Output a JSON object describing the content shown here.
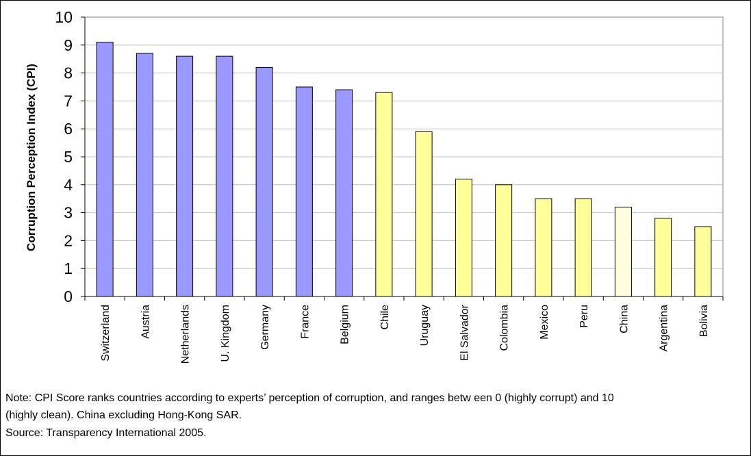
{
  "chart_data": {
    "type": "bar",
    "title": "",
    "xlabel": "",
    "ylabel": "Corruption Perception Index (CPI)",
    "ylim": [
      0,
      10
    ],
    "yticks": [
      "0",
      "1",
      "2",
      "3",
      "4",
      "5",
      "6",
      "7",
      "8",
      "9",
      "10"
    ],
    "grid": true,
    "categories": [
      "Switzerland",
      "Austria",
      "Netherlands",
      "U. Kingdom",
      "Germany",
      "France",
      "Belgium",
      "Chile",
      "Uruguay",
      "El Salvador",
      "Colombia",
      "Mexico",
      "Peru",
      "China",
      "Argentina",
      "Bolivia"
    ],
    "values": [
      9.1,
      8.7,
      8.6,
      8.6,
      8.2,
      7.5,
      7.4,
      7.3,
      5.9,
      4.2,
      4.0,
      3.5,
      3.5,
      3.2,
      2.8,
      2.5
    ],
    "bar_colors": [
      "#9999ff",
      "#9999ff",
      "#9999ff",
      "#9999ff",
      "#9999ff",
      "#9999ff",
      "#9999ff",
      "#ffff99",
      "#ffff99",
      "#ffff99",
      "#ffff99",
      "#ffff99",
      "#ffff99",
      "#ffffe0",
      "#ffff99",
      "#ffff99"
    ]
  },
  "notes": {
    "line1": "Note: CPI Score ranks countries according to experts’ perception of corruption, and ranges betw een 0 (highly corrupt) and 10",
    "line2": "(highly clean). China excluding Hong-Kong SAR.",
    "line3": "Source: Transparency International 2005."
  },
  "colors": {
    "europe": "#9999ff",
    "latin_america": "#ffff99",
    "china": "#ffffe0",
    "gridline": "#c0c0c0"
  }
}
